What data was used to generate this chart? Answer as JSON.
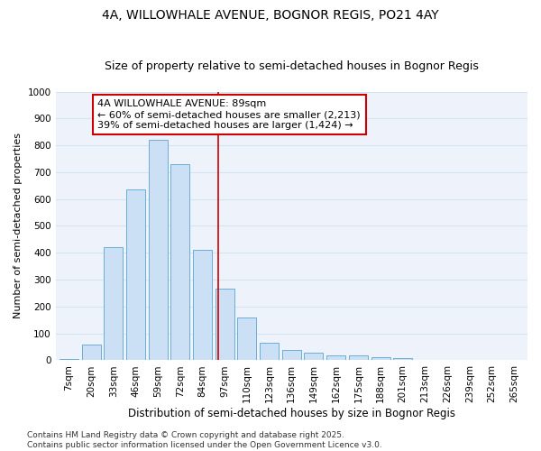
{
  "title1": "4A, WILLOWHALE AVENUE, BOGNOR REGIS, PO21 4AY",
  "title2": "Size of property relative to semi-detached houses in Bognor Regis",
  "xlabel": "Distribution of semi-detached houses by size in Bognor Regis",
  "ylabel": "Number of semi-detached properties",
  "categories": [
    "7sqm",
    "20sqm",
    "33sqm",
    "46sqm",
    "59sqm",
    "72sqm",
    "84sqm",
    "97sqm",
    "110sqm",
    "123sqm",
    "136sqm",
    "149sqm",
    "162sqm",
    "175sqm",
    "188sqm",
    "201sqm",
    "213sqm",
    "226sqm",
    "239sqm",
    "252sqm",
    "265sqm"
  ],
  "values": [
    5,
    60,
    420,
    635,
    820,
    730,
    410,
    265,
    160,
    65,
    40,
    28,
    18,
    18,
    10,
    8,
    3,
    1,
    1,
    0,
    0
  ],
  "bar_color": "#cce0f5",
  "bar_edge_color": "#6aaed6",
  "annotation_text_line1": "4A WILLOWHALE AVENUE: 89sqm",
  "annotation_text_line2": "← 60% of semi-detached houses are smaller (2,213)",
  "annotation_text_line3": "39% of semi-detached houses are larger (1,424) →",
  "annotation_box_color": "white",
  "annotation_box_edge_color": "#cc0000",
  "vline_color": "#cc0000",
  "vline_x_index": 6.69,
  "ylim": [
    0,
    1000
  ],
  "yticks": [
    0,
    100,
    200,
    300,
    400,
    500,
    600,
    700,
    800,
    900,
    1000
  ],
  "footnote": "Contains HM Land Registry data © Crown copyright and database right 2025.\nContains public sector information licensed under the Open Government Licence v3.0.",
  "grid_color": "#d5e3f0",
  "bg_color": "#eef3fb",
  "title1_fontsize": 10,
  "title2_fontsize": 9,
  "xlabel_fontsize": 8.5,
  "ylabel_fontsize": 8,
  "tick_fontsize": 7.5,
  "annotation_fontsize": 8,
  "footnote_fontsize": 6.5
}
